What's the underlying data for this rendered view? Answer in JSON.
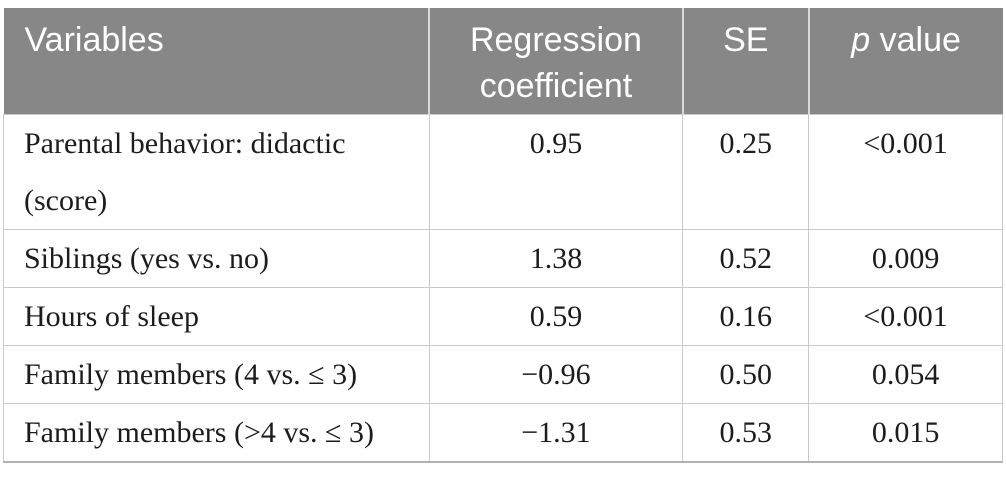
{
  "table": {
    "header": {
      "variables": "Variables",
      "regression_coefficient": "Regression coefficient",
      "se": "SE",
      "p_italic": "p",
      "p_rest": " value"
    },
    "rows": [
      {
        "variable": "Parental behavior: didactic (score)",
        "coefficient": "0.95",
        "se": "0.25",
        "p": "<0.001"
      },
      {
        "variable": "Siblings (yes vs. no)",
        "coefficient": "1.38",
        "se": "0.52",
        "p": "0.009"
      },
      {
        "variable": "Hours of sleep",
        "coefficient": "0.59",
        "se": "0.16",
        "p": "<0.001"
      },
      {
        "variable": "Family members (4 vs. ≤ 3)",
        "coefficient": "−0.96",
        "se": "0.50",
        "p": "0.054"
      },
      {
        "variable": "Family members (>4 vs. ≤ 3)",
        "coefficient": "−1.31",
        "se": "0.53",
        "p": "0.015"
      }
    ],
    "colors": {
      "header_bg": "#878787",
      "header_text": "#ffffff",
      "header_divider": "#d9d9d9",
      "body_border": "#c9c9c9",
      "bottom_rule": "#b3b3b3",
      "body_text": "#1c1c1c"
    }
  }
}
